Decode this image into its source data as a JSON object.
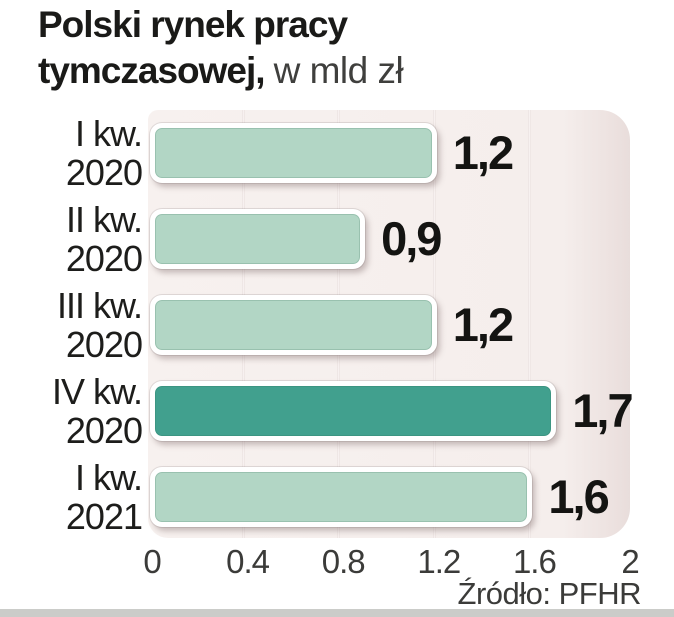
{
  "title": {
    "line1": "Polski rynek pracy",
    "line2_bold": "tymczasowej,",
    "line2_unit": "w mld zł"
  },
  "source": "Źródło: PFHR",
  "chart_data": {
    "type": "bar",
    "orientation": "horizontal",
    "title": "Polski rynek pracy tymczasowej, w mld zł",
    "unit": "mld zł",
    "xlim": [
      0,
      2
    ],
    "x_ticks": [
      "0",
      "0.4",
      "0.8",
      "1.2",
      "1.6",
      "2"
    ],
    "grid": "vertical",
    "legend": "none",
    "categories": [
      "I kw. 2020",
      "II kw. 2020",
      "III kw. 2020",
      "IV kw. 2020",
      "I kw. 2021"
    ],
    "values": [
      1.2,
      0.9,
      1.2,
      1.7,
      1.6
    ],
    "rows": [
      {
        "label_line1": "I kw.",
        "label_line2": "2020",
        "value": 1.2,
        "value_label": "1,2",
        "highlighted": false
      },
      {
        "label_line1": "II kw.",
        "label_line2": "2020",
        "value": 0.9,
        "value_label": "0,9",
        "highlighted": false
      },
      {
        "label_line1": "III kw.",
        "label_line2": "2020",
        "value": 1.2,
        "value_label": "1,2",
        "highlighted": false
      },
      {
        "label_line1": "IV kw.",
        "label_line2": "2020",
        "value": 1.7,
        "value_label": "1,7",
        "highlighted": true
      },
      {
        "label_line1": "I kw.",
        "label_line2": "2021",
        "value": 1.6,
        "value_label": "1,6",
        "highlighted": false
      }
    ],
    "colors": {
      "bar": "#b2d6c5",
      "bar_highlight": "#41a08e",
      "panel_bg": "#f6efed",
      "panel_edge": "#e8dddb",
      "gridline": "#e7dedc",
      "value_text": "#141412",
      "axis_text": "#3b3b39",
      "bottom_strip": "#cbccc9"
    }
  }
}
